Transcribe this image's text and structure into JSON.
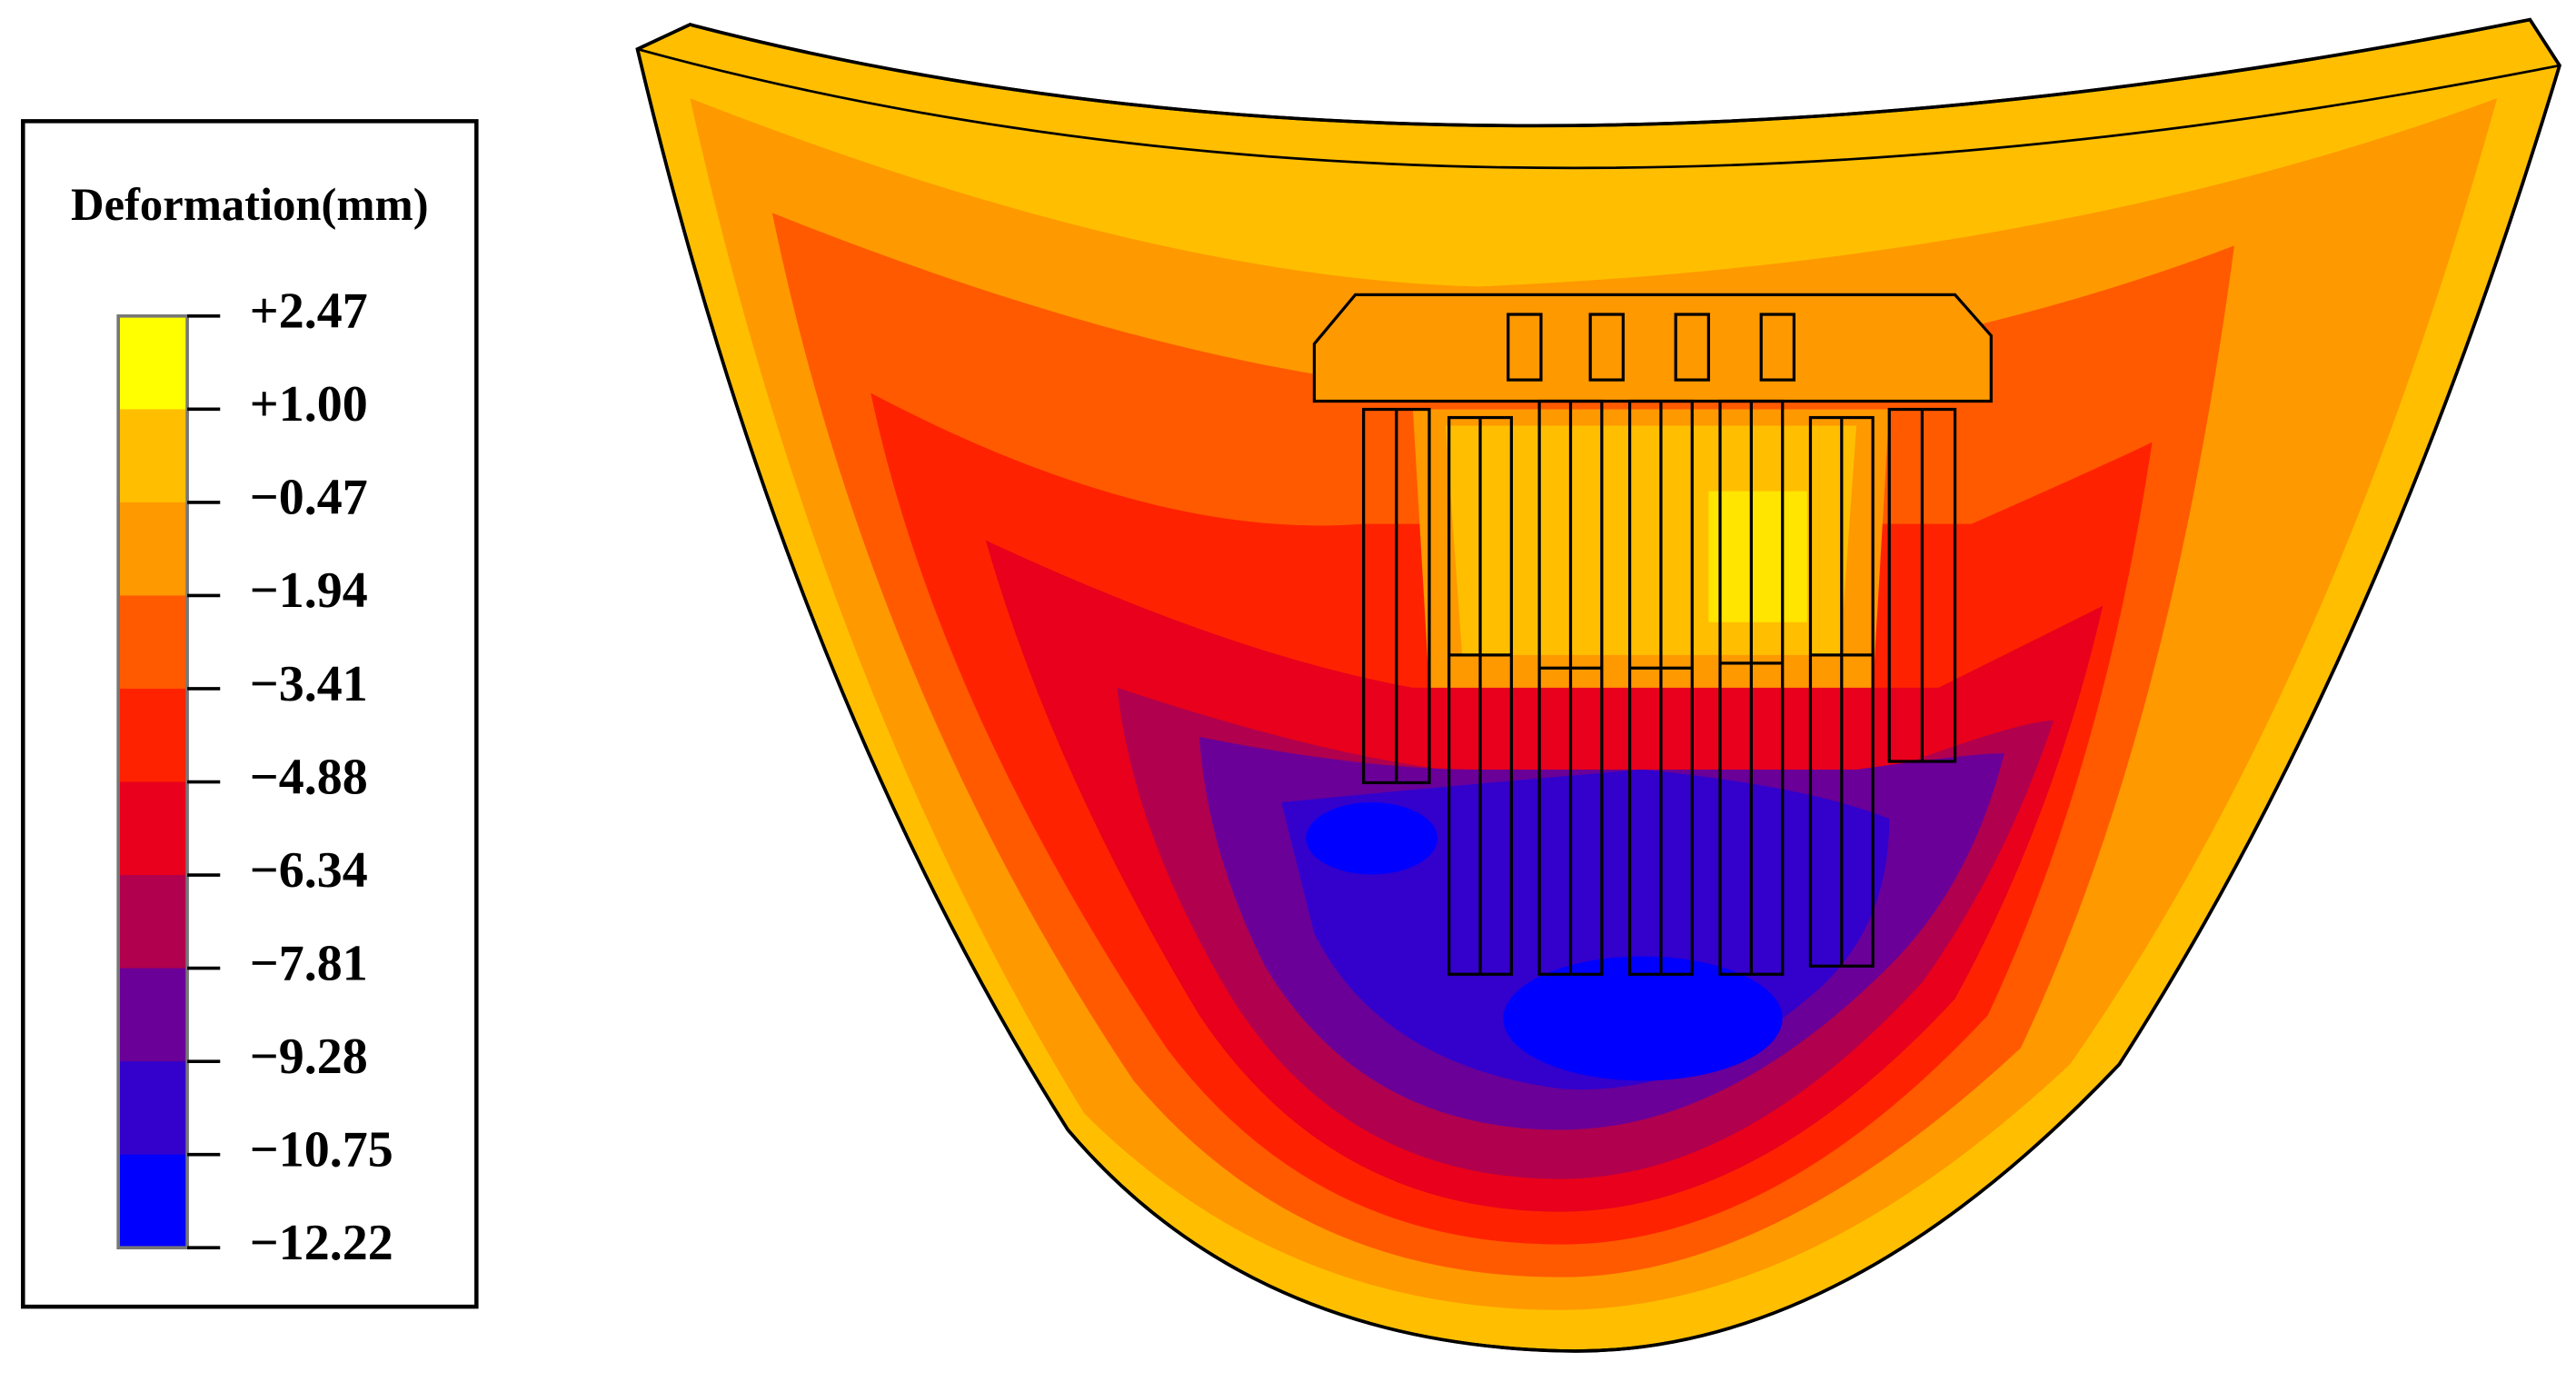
{
  "legend": {
    "title": "Deformation(mm)",
    "labels": [
      "+2.47",
      "+1.00",
      "−0.47",
      "−1.94",
      "−3.41",
      "−4.88",
      "−6.34",
      "−7.81",
      "−9.28",
      "−10.75",
      "−12.22"
    ],
    "colors": [
      "#ffff00",
      "#ffbf00",
      "#ff9900",
      "#ff5a00",
      "#ff2200",
      "#e8001c",
      "#b0004e",
      "#6a0098",
      "#3300cc",
      "#0000ff"
    ]
  }
}
